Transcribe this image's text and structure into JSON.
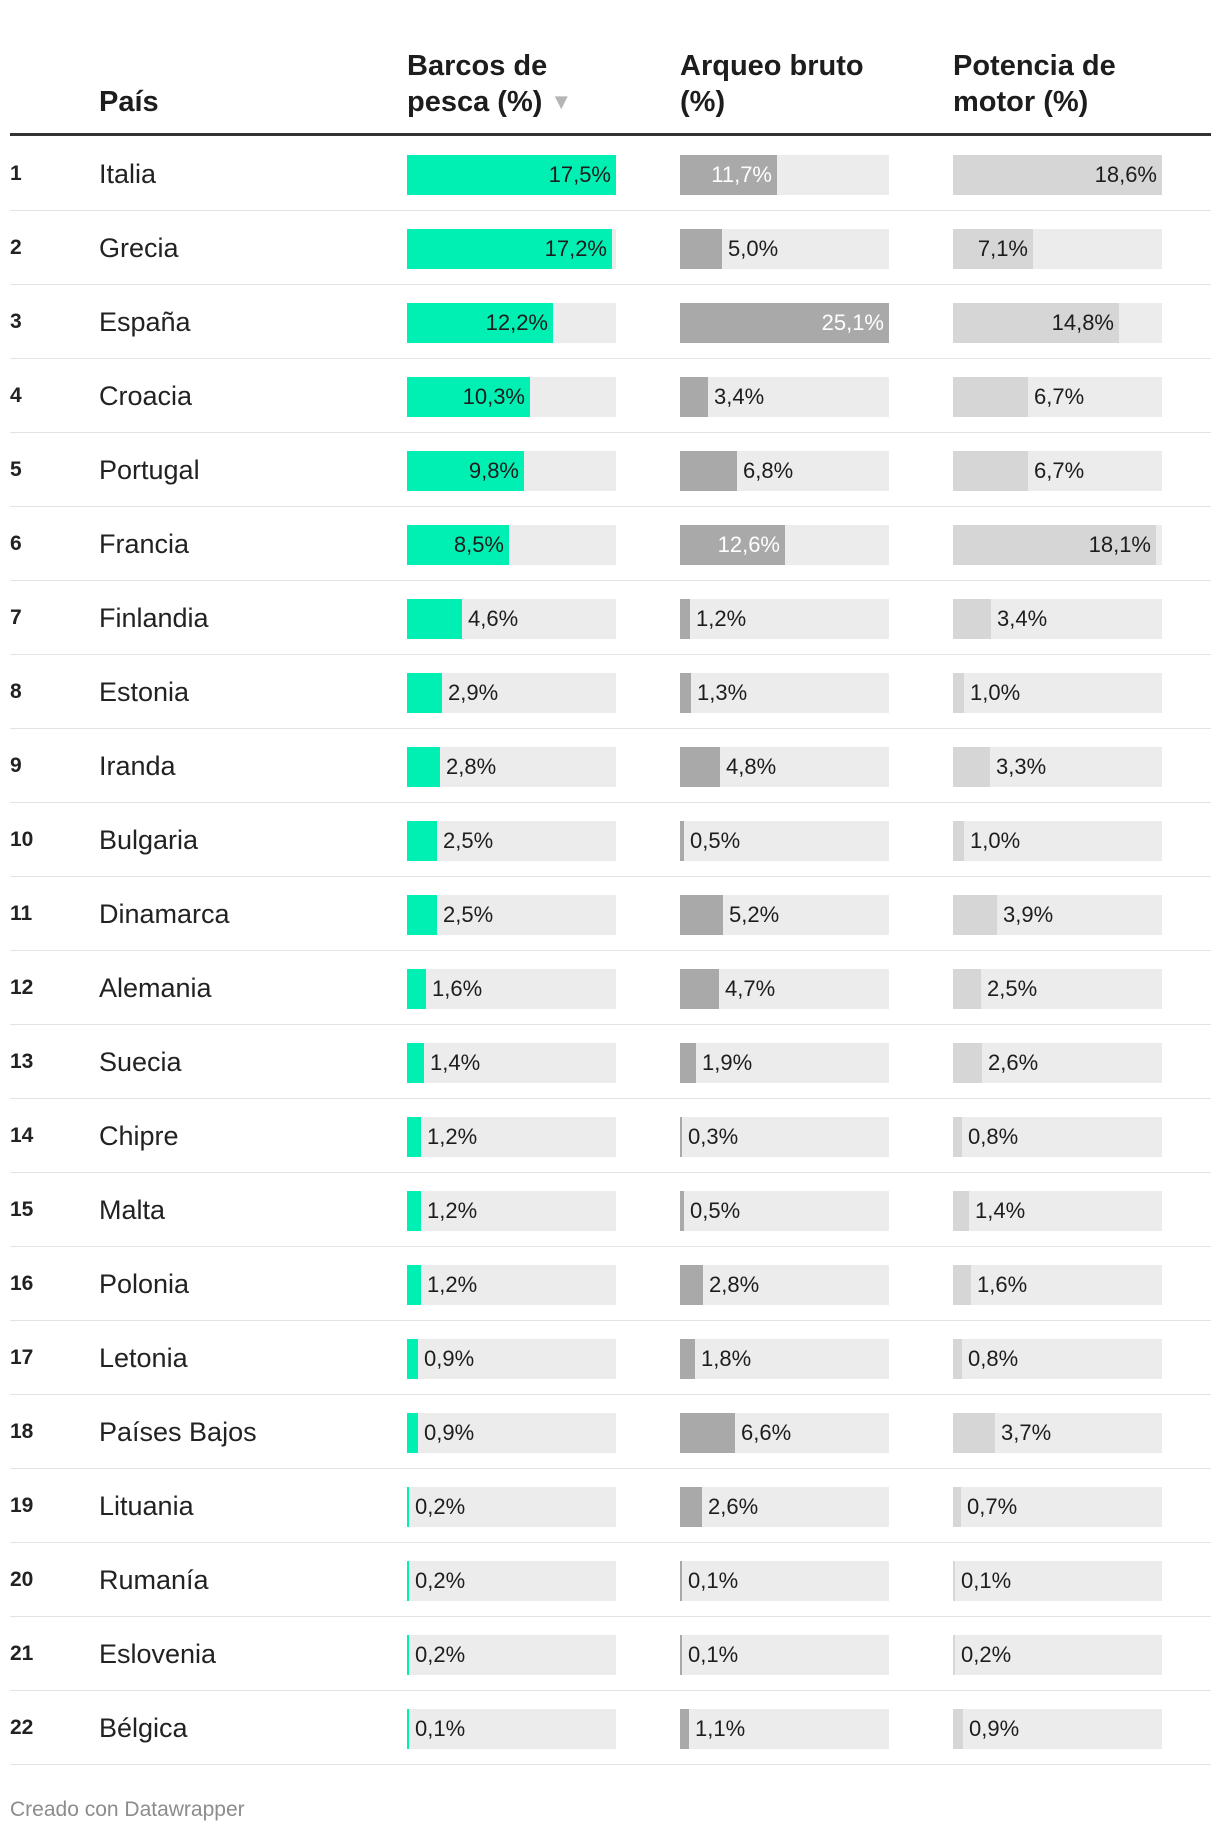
{
  "chart_data": {
    "type": "table",
    "columns": [
      {
        "key": "rank",
        "label": ""
      },
      {
        "key": "country",
        "label": "País"
      },
      {
        "key": "boats",
        "label": "Barcos de pesca (%)",
        "label_lines": [
          "Barcos de",
          "pesca (%)"
        ],
        "sorted": true,
        "sort_icon": "triangle-down-icon",
        "sort_glyph": "▼",
        "color": "#00f0b4",
        "max": 17.5
      },
      {
        "key": "tonnage",
        "label": "Arqueo bruto (%)",
        "label_lines": [
          "Arqueo bruto",
          "(%)"
        ],
        "color": "#a9a9a9",
        "max": 25.1
      },
      {
        "key": "power",
        "label": "Potencia de motor (%)",
        "label_lines": [
          "Potencia de",
          "motor (%)"
        ],
        "color": "#d6d6d6",
        "max": 18.6
      }
    ],
    "rows": [
      {
        "rank": "1",
        "country": "Italia",
        "boats": 17.5,
        "tonnage": 11.7,
        "power": 18.6
      },
      {
        "rank": "2",
        "country": "Grecia",
        "boats": 17.2,
        "tonnage": 5.0,
        "power": 7.1
      },
      {
        "rank": "3",
        "country": "España",
        "boats": 12.2,
        "tonnage": 25.1,
        "power": 14.8
      },
      {
        "rank": "4",
        "country": "Croacia",
        "boats": 10.3,
        "tonnage": 3.4,
        "power": 6.7
      },
      {
        "rank": "5",
        "country": "Portugal",
        "boats": 9.8,
        "tonnage": 6.8,
        "power": 6.7
      },
      {
        "rank": "6",
        "country": "Francia",
        "boats": 8.5,
        "tonnage": 12.6,
        "power": 18.1
      },
      {
        "rank": "7",
        "country": "Finlandia",
        "boats": 4.6,
        "tonnage": 1.2,
        "power": 3.4
      },
      {
        "rank": "8",
        "country": "Estonia",
        "boats": 2.9,
        "tonnage": 1.3,
        "power": 1.0
      },
      {
        "rank": "9",
        "country": "Iranda",
        "boats": 2.8,
        "tonnage": 4.8,
        "power": 3.3
      },
      {
        "rank": "10",
        "country": "Bulgaria",
        "boats": 2.5,
        "tonnage": 0.5,
        "power": 1.0
      },
      {
        "rank": "11",
        "country": "Dinamarca",
        "boats": 2.5,
        "tonnage": 5.2,
        "power": 3.9
      },
      {
        "rank": "12",
        "country": "Alemania",
        "boats": 1.6,
        "tonnage": 4.7,
        "power": 2.5
      },
      {
        "rank": "13",
        "country": "Suecia",
        "boats": 1.4,
        "tonnage": 1.9,
        "power": 2.6
      },
      {
        "rank": "14",
        "country": "Chipre",
        "boats": 1.2,
        "tonnage": 0.3,
        "power": 0.8
      },
      {
        "rank": "15",
        "country": "Malta",
        "boats": 1.2,
        "tonnage": 0.5,
        "power": 1.4
      },
      {
        "rank": "16",
        "country": "Polonia",
        "boats": 1.2,
        "tonnage": 2.8,
        "power": 1.6
      },
      {
        "rank": "17",
        "country": "Letonia",
        "boats": 0.9,
        "tonnage": 1.8,
        "power": 0.8
      },
      {
        "rank": "18",
        "country": "Países Bajos",
        "boats": 0.9,
        "tonnage": 6.6,
        "power": 3.7
      },
      {
        "rank": "19",
        "country": "Lituania",
        "boats": 0.2,
        "tonnage": 2.6,
        "power": 0.7
      },
      {
        "rank": "20",
        "country": "Rumanía",
        "boats": 0.2,
        "tonnage": 0.1,
        "power": 0.1
      },
      {
        "rank": "21",
        "country": "Eslovenia",
        "boats": 0.2,
        "tonnage": 0.1,
        "power": 0.2
      },
      {
        "rank": "22",
        "country": "Bélgica",
        "boats": 0.1,
        "tonnage": 1.1,
        "power": 0.9
      }
    ],
    "value_format": {
      "decimal_separator": ",",
      "decimals": 1,
      "suffix": "%"
    },
    "label_color_inside": {
      "boats": "#1d1d1d",
      "tonnage": "#ffffff",
      "power": "#1d1d1d"
    },
    "track_color": "#ececec"
  },
  "footer": {
    "credit": "Creado con Datawrapper"
  }
}
